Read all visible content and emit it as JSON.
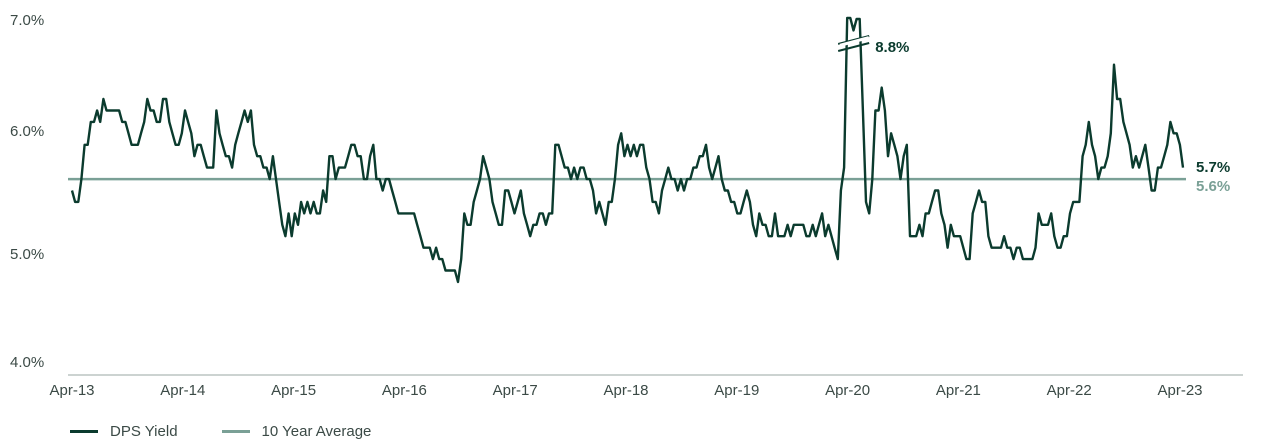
{
  "chart_data": {
    "type": "line",
    "title": "",
    "xlabel": "",
    "ylabel": "",
    "ylim": [
      4.0,
      7.0
    ],
    "yticks": [
      "4.0%",
      "5.0%",
      "6.0%",
      "7.0%"
    ],
    "xticks": [
      "Apr-13",
      "Apr-14",
      "Apr-15",
      "Apr-16",
      "Apr-17",
      "Apr-18",
      "Apr-19",
      "Apr-20",
      "Apr-21",
      "Apr-22",
      "Apr-23"
    ],
    "grid": false,
    "legend_position": "bottom-left",
    "axis_break_annotation": "8.8%",
    "series": [
      {
        "name": "DPS Yield",
        "color": "#0b3b2e",
        "end_label": "5.7%",
        "values": [
          5.5,
          5.4,
          5.4,
          5.6,
          5.9,
          5.9,
          6.1,
          6.1,
          6.2,
          6.1,
          6.3,
          6.2,
          6.2,
          6.2,
          6.2,
          6.2,
          6.1,
          6.1,
          6.0,
          5.9,
          5.9,
          5.9,
          6.0,
          6.1,
          6.3,
          6.2,
          6.2,
          6.1,
          6.1,
          6.3,
          6.3,
          6.1,
          6.0,
          5.9,
          5.9,
          6.0,
          6.2,
          6.1,
          6.0,
          5.8,
          5.9,
          5.9,
          5.8,
          5.7,
          5.7,
          5.7,
          6.2,
          6.0,
          5.9,
          5.8,
          5.8,
          5.7,
          5.9,
          6.0,
          6.1,
          6.2,
          6.1,
          6.2,
          5.9,
          5.8,
          5.8,
          5.7,
          5.7,
          5.6,
          5.8,
          5.6,
          5.4,
          5.2,
          5.1,
          5.3,
          5.1,
          5.3,
          5.2,
          5.4,
          5.3,
          5.4,
          5.3,
          5.4,
          5.3,
          5.3,
          5.5,
          5.4,
          5.8,
          5.8,
          5.6,
          5.7,
          5.7,
          5.7,
          5.8,
          5.9,
          5.9,
          5.8,
          5.8,
          5.6,
          5.6,
          5.8,
          5.9,
          5.6,
          5.6,
          5.5,
          5.6,
          5.6,
          5.5,
          5.4,
          5.3,
          5.3,
          5.3,
          5.3,
          5.3,
          5.3,
          5.2,
          5.1,
          5.0,
          5.0,
          5.0,
          4.9,
          5.0,
          4.9,
          4.9,
          4.8,
          4.8,
          4.8,
          4.8,
          4.7,
          4.9,
          5.3,
          5.2,
          5.2,
          5.4,
          5.5,
          5.6,
          5.8,
          5.7,
          5.6,
          5.4,
          5.3,
          5.2,
          5.2,
          5.5,
          5.5,
          5.4,
          5.3,
          5.4,
          5.5,
          5.3,
          5.2,
          5.1,
          5.2,
          5.2,
          5.3,
          5.3,
          5.2,
          5.3,
          5.3,
          5.9,
          5.9,
          5.8,
          5.7,
          5.7,
          5.6,
          5.7,
          5.6,
          5.7,
          5.7,
          5.6,
          5.6,
          5.5,
          5.3,
          5.4,
          5.3,
          5.2,
          5.4,
          5.4,
          5.6,
          5.9,
          6.0,
          5.8,
          5.9,
          5.8,
          5.9,
          5.8,
          5.9,
          5.9,
          5.7,
          5.6,
          5.4,
          5.4,
          5.3,
          5.5,
          5.6,
          5.7,
          5.6,
          5.6,
          5.5,
          5.6,
          5.5,
          5.6,
          5.6,
          5.7,
          5.7,
          5.8,
          5.8,
          5.9,
          5.7,
          5.6,
          5.7,
          5.8,
          5.6,
          5.5,
          5.5,
          5.4,
          5.4,
          5.3,
          5.3,
          5.4,
          5.5,
          5.4,
          5.2,
          5.1,
          5.3,
          5.2,
          5.2,
          5.1,
          5.1,
          5.3,
          5.1,
          5.1,
          5.1,
          5.2,
          5.1,
          5.2,
          5.2,
          5.2,
          5.2,
          5.1,
          5.1,
          5.2,
          5.1,
          5.2,
          5.3,
          5.1,
          5.2,
          5.1,
          5.0,
          4.9,
          5.5,
          5.7,
          7.1,
          7.1,
          6.9,
          7.0,
          7.0,
          6.2,
          5.4,
          5.3,
          5.6,
          6.2,
          6.2,
          6.4,
          6.2,
          5.8,
          6.0,
          5.9,
          5.8,
          5.6,
          5.8,
          5.9,
          5.1,
          5.1,
          5.1,
          5.2,
          5.1,
          5.3,
          5.3,
          5.4,
          5.5,
          5.5,
          5.3,
          5.2,
          5.0,
          5.2,
          5.1,
          5.1,
          5.1,
          5.0,
          4.9,
          4.9,
          5.3,
          5.4,
          5.5,
          5.4,
          5.4,
          5.1,
          5.0,
          5.0,
          5.0,
          5.0,
          5.1,
          5.0,
          5.0,
          4.9,
          5.0,
          5.0,
          4.9,
          4.9,
          4.9,
          4.9,
          5.0,
          5.3,
          5.2,
          5.2,
          5.2,
          5.3,
          5.1,
          5.0,
          5.0,
          5.1,
          5.1,
          5.3,
          5.4,
          5.4,
          5.4,
          5.8,
          5.9,
          6.1,
          5.9,
          5.8,
          5.6,
          5.7,
          5.7,
          5.8,
          6.0,
          6.6,
          6.3,
          6.3,
          6.1,
          6.0,
          5.9,
          5.7,
          5.8,
          5.7,
          5.8,
          5.9,
          5.7,
          5.5,
          5.5,
          5.7,
          5.7,
          5.8,
          5.9,
          6.1,
          6.0,
          6.0,
          5.9,
          5.7
        ]
      },
      {
        "name": "10 Year Average",
        "color": "#7aa096",
        "end_label": "5.6%",
        "values": [
          5.6,
          5.6
        ]
      }
    ]
  }
}
